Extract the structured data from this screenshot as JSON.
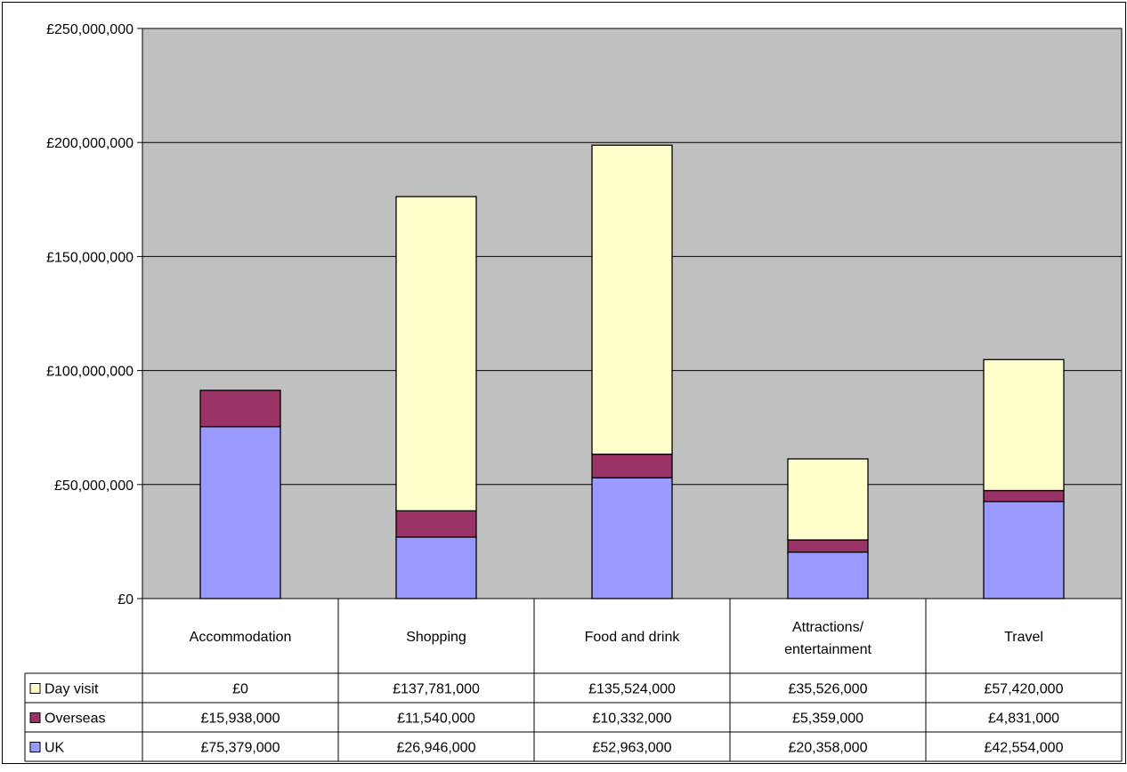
{
  "chart_data": {
    "type": "bar",
    "stacked": true,
    "categories": [
      "Accommodation",
      "Shopping",
      "Food and drink",
      "Attractions/ entertainment",
      "Travel"
    ],
    "category_lines": [
      [
        "Accommodation"
      ],
      [
        "Shopping"
      ],
      [
        "Food and drink"
      ],
      [
        "Attractions/",
        "entertainment"
      ],
      [
        "Travel"
      ]
    ],
    "series": [
      {
        "name": "UK",
        "color": "#9999ff",
        "values": [
          75379000,
          26946000,
          52963000,
          20358000,
          42554000
        ]
      },
      {
        "name": "Overseas",
        "color": "#993366",
        "values": [
          15938000,
          11540000,
          10332000,
          5359000,
          4831000
        ]
      },
      {
        "name": "Day visit",
        "color": "#ffffcc",
        "values": [
          0,
          137781000,
          135524000,
          35526000,
          57420000
        ]
      }
    ],
    "y_ticks": [
      "£0",
      "£50,000,000",
      "£100,000,000",
      "£150,000,000",
      "£200,000,000",
      "£250,000,000"
    ],
    "ylim": [
      0,
      250000000
    ],
    "grid": true,
    "plot_background": "#c0c0c0",
    "data_table": {
      "rows": [
        {
          "series": "Day visit",
          "cells": [
            "£0",
            "£137,781,000",
            "£135,524,000",
            "£35,526,000",
            "£57,420,000"
          ]
        },
        {
          "series": "Overseas",
          "cells": [
            "£15,938,000",
            "£11,540,000",
            "£10,332,000",
            "£5,359,000",
            "£4,831,000"
          ]
        },
        {
          "series": "UK",
          "cells": [
            "£75,379,000",
            "£26,946,000",
            "£52,963,000",
            "£20,358,000",
            "£42,554,000"
          ]
        }
      ]
    }
  }
}
